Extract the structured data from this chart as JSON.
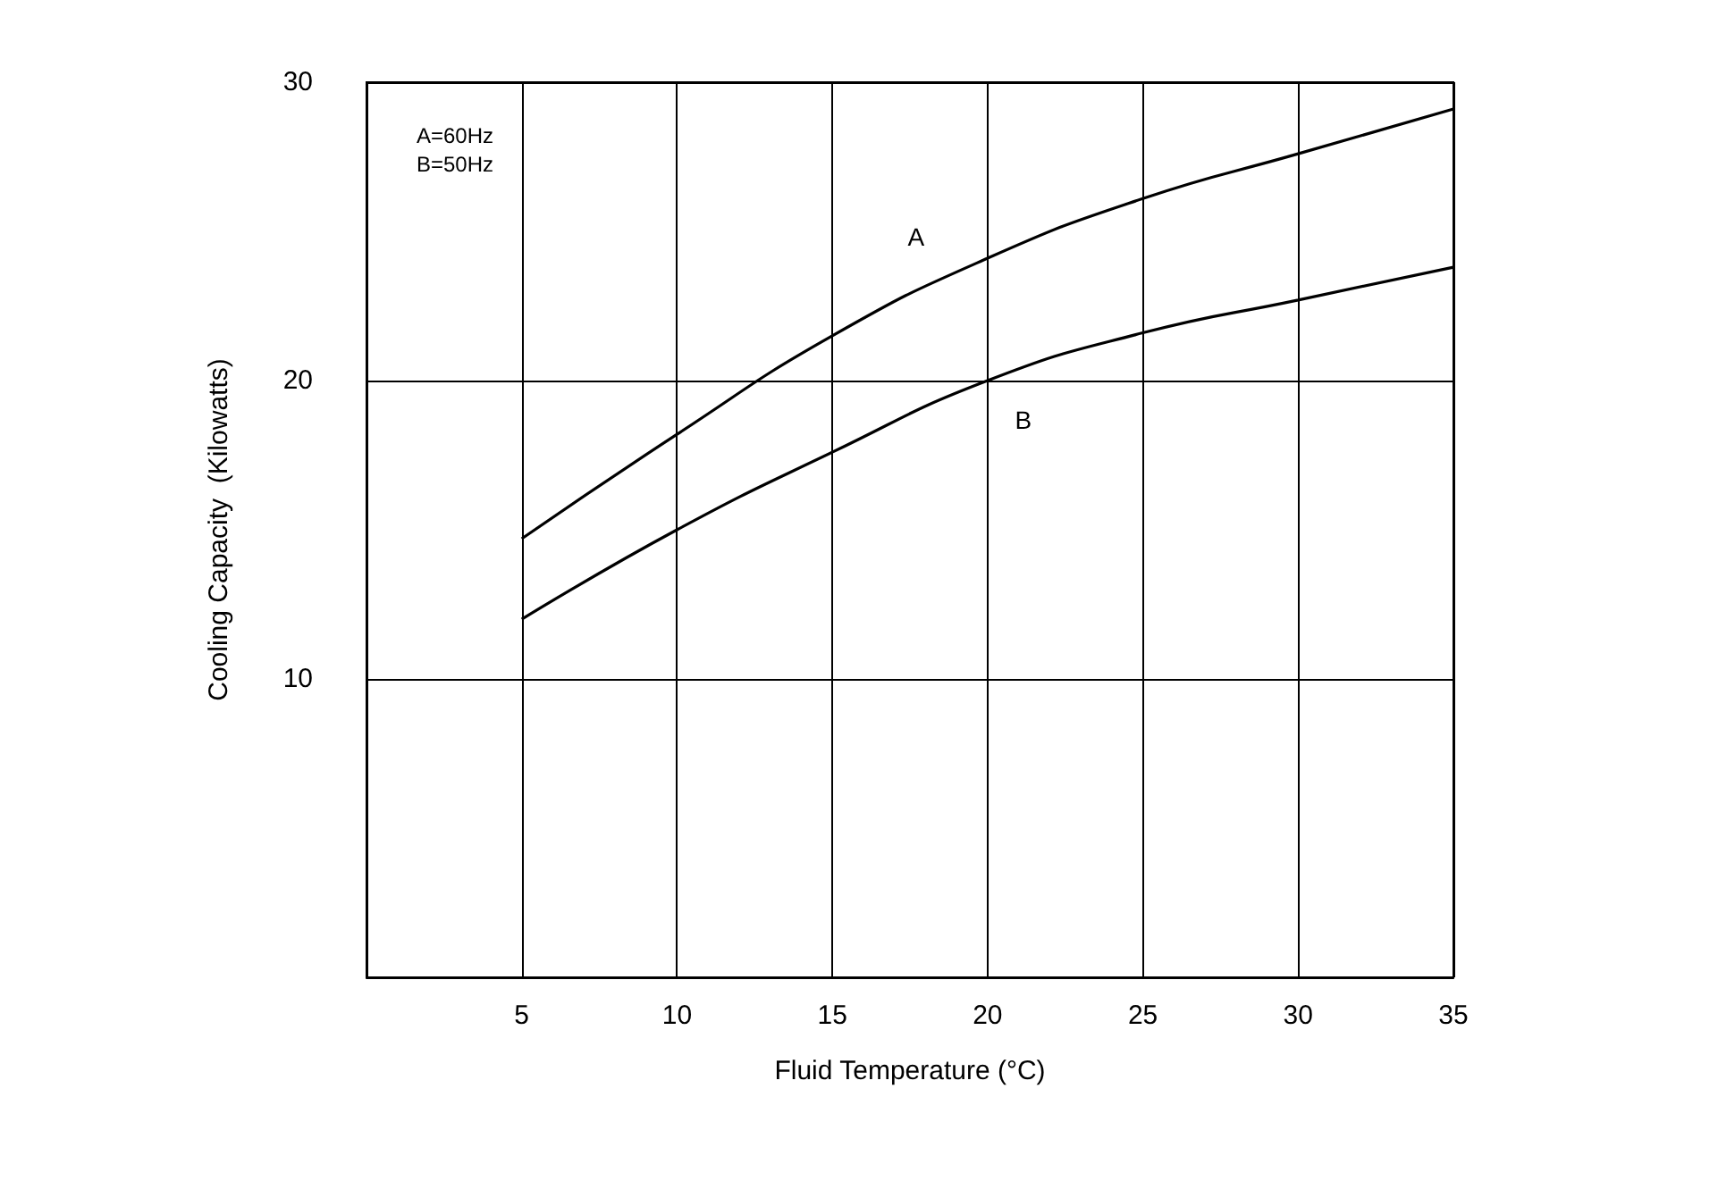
{
  "chart_data": {
    "type": "line",
    "xlabel": "Fluid Temperature (°C)",
    "ylabel": "Cooling Capacity  (Kilowatts)",
    "x": [
      5,
      10,
      15,
      20,
      25,
      30,
      35
    ],
    "series": [
      {
        "name": "A",
        "color": "#000000",
        "values": [
          14.7,
          18.2,
          21.5,
          24.1,
          26.1,
          27.6,
          29.1
        ]
      },
      {
        "name": "B",
        "color": "#000000",
        "values": [
          12.0,
          15.0,
          17.6,
          20.0,
          21.6,
          22.7,
          23.8
        ]
      }
    ],
    "xlim": [
      0,
      35
    ],
    "xticks": [
      5,
      10,
      15,
      20,
      25,
      30,
      35
    ],
    "ylim": [
      0,
      30
    ],
    "yticks": [
      10,
      20,
      30
    ],
    "grid": true,
    "marker": "none",
    "line_style": "solid",
    "annotations": [
      "A=60Hz\nB=50Hz"
    ]
  }
}
